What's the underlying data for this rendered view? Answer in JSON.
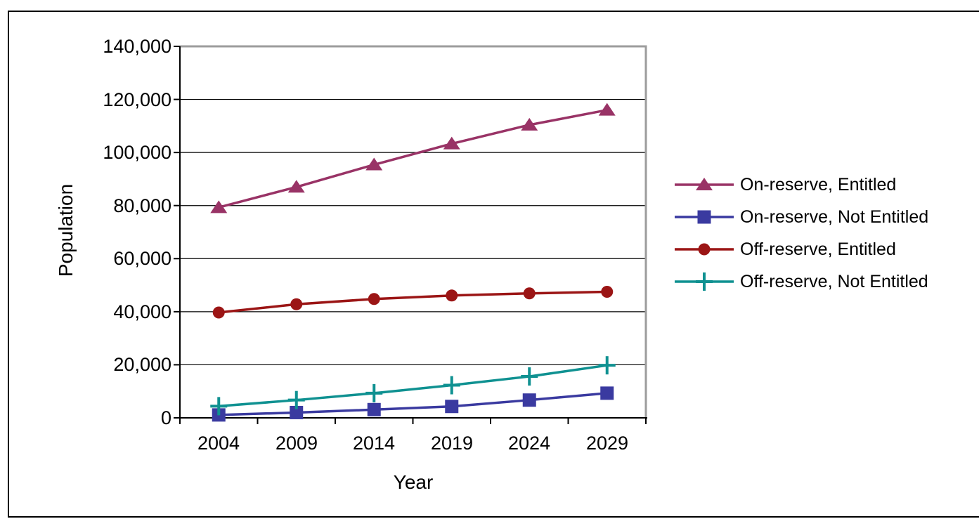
{
  "chart_data": {
    "type": "line",
    "xlabel": "Year",
    "ylabel": "Population",
    "x_categories": [
      "2004",
      "2009",
      "2014",
      "2019",
      "2024",
      "2029"
    ],
    "y_tick_labels": [
      "140,000",
      "120,000",
      "100,000",
      "80,000",
      "60,000",
      "40,000",
      "20,000",
      "0"
    ],
    "ylim": [
      0,
      140000
    ],
    "y_tick_step": 20000,
    "grid": "horizontal",
    "legend_position": "right",
    "axis_color": "#000000",
    "plot_border_color": "#9c9c9c",
    "series": [
      {
        "name": "On-reserve, Entitled",
        "marker": "triangle",
        "color": "#993366",
        "values": [
          79300,
          87000,
          95400,
          103300,
          110400,
          116000
        ]
      },
      {
        "name": "On-reserve, Not Entitled",
        "marker": "square",
        "color": "#3a3aa0",
        "values": [
          1100,
          2000,
          3100,
          4300,
          6700,
          9300
        ]
      },
      {
        "name": "Off-reserve, Entitled",
        "marker": "circle",
        "color": "#9b1515",
        "values": [
          39700,
          42800,
          44800,
          46100,
          46900,
          47500
        ]
      },
      {
        "name": "Off-reserve, Not Entitled",
        "marker": "plus",
        "color": "#0f9191",
        "values": [
          4400,
          6700,
          9300,
          12300,
          15600,
          19800
        ]
      }
    ]
  }
}
